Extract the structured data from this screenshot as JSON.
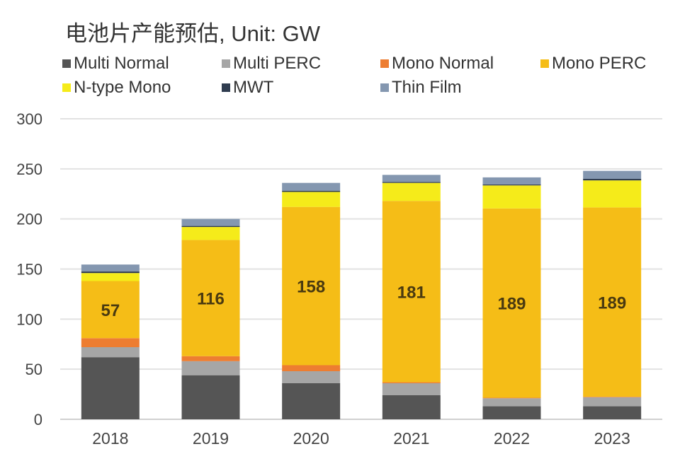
{
  "chart_data": {
    "type": "bar",
    "stacked": true,
    "title": "电池片产能预估, Unit: GW",
    "xlabel": "",
    "ylabel": "",
    "ylim": [
      0,
      300
    ],
    "yticks": [
      0,
      50,
      100,
      150,
      200,
      250,
      300
    ],
    "grid": true,
    "legend_position": "top",
    "categories": [
      "2018",
      "2019",
      "2020",
      "2021",
      "2022",
      "2023"
    ],
    "series": [
      {
        "name": "Multi Normal",
        "color": "#555555",
        "values": [
          62,
          44,
          36,
          24,
          13,
          13
        ]
      },
      {
        "name": "Multi PERC",
        "color": "#a6a6a6",
        "values": [
          10,
          14,
          12,
          12,
          8,
          9
        ]
      },
      {
        "name": "Mono Normal",
        "color": "#ed7d31",
        "values": [
          9,
          5,
          6,
          1,
          0.5,
          0.5
        ]
      },
      {
        "name": "Mono PERC",
        "color": "#f5bd17",
        "values": [
          57,
          116,
          158,
          181,
          189,
          189
        ],
        "data_labels": [
          "57",
          "116",
          "158",
          "181",
          "189",
          "189"
        ]
      },
      {
        "name": "N-type Mono",
        "color": "#f5eb1a",
        "values": [
          8,
          13,
          15,
          18,
          23,
          27
        ]
      },
      {
        "name": "MWT",
        "color": "#2f3c4f",
        "values": [
          1.5,
          1,
          1,
          1,
          1,
          1.5
        ]
      },
      {
        "name": "Thin Film",
        "color": "#8497b0",
        "values": [
          7,
          7,
          8,
          7,
          7,
          8
        ]
      }
    ]
  }
}
